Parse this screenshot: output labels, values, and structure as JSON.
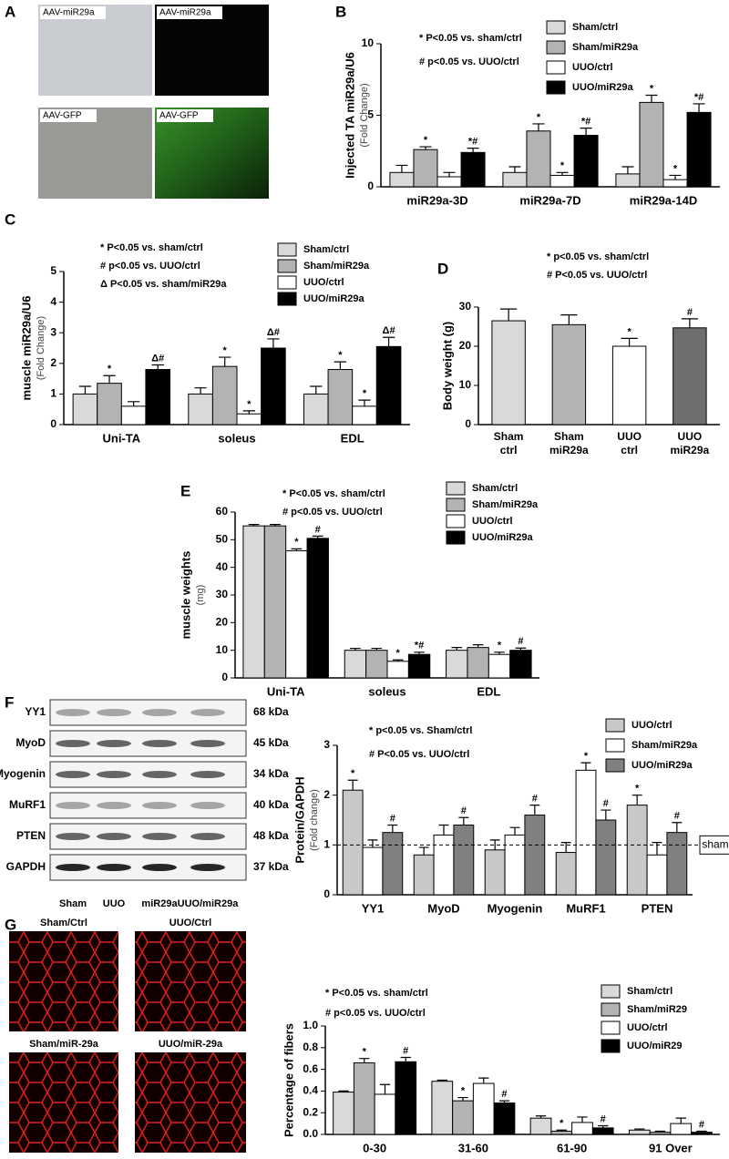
{
  "images_a": {
    "panel": "A",
    "labels": [
      "AAV-miR29a",
      "AAV-miR29a",
      "AAV-GFP",
      "AAV-GFP"
    ]
  },
  "blot_f": {
    "rows": [
      {
        "protein": "YY1",
        "size": "68 kDa"
      },
      {
        "protein": "MyoD",
        "size": "45 kDa"
      },
      {
        "protein": "Myogenin",
        "size": "34 kDa"
      },
      {
        "protein": "MuRF1",
        "size": "40 kDa"
      },
      {
        "protein": "PTEN",
        "size": "48 kDa"
      },
      {
        "protein": "GAPDH",
        "size": "37 kDa"
      }
    ],
    "lanes": [
      "Sham",
      "UUO",
      "miR29a",
      "UUO/miR29a"
    ]
  },
  "images_g": {
    "labels": [
      "Sham/Ctrl",
      "UUO/Ctrl",
      "Sham/miR-29a",
      "UUO/miR-29a"
    ]
  },
  "chart_data": [
    {
      "type": "bar",
      "panel": "B",
      "ylabel": "Injected TA miR29a/U6",
      "ylabel_sub": "(Fold Change)",
      "annotations": [
        "* P<0.05 vs. sham/ctrl",
        "# p<0.05 vs. UUO/ctrl"
      ],
      "categories": [
        "miR29a-3D",
        "miR29a-7D",
        "miR29a-14D"
      ],
      "series": [
        {
          "name": "Sham/ctrl",
          "color": "#d9d9d9",
          "values": [
            1,
            1,
            0.9
          ],
          "errors": [
            0.5,
            0.4,
            0.5
          ],
          "sig": [
            null,
            null,
            null
          ]
        },
        {
          "name": "Sham/miR29a",
          "color": "#b3b3b3",
          "values": [
            2.6,
            3.9,
            5.9
          ],
          "errors": [
            0.2,
            0.5,
            0.5
          ],
          "sig": [
            "*",
            "*",
            "*"
          ]
        },
        {
          "name": "UUO/ctrl",
          "color": "#ffffff",
          "values": [
            0.7,
            0.8,
            0.5
          ],
          "errors": [
            0.3,
            0.2,
            0.3
          ],
          "sig": [
            null,
            "*",
            "*"
          ]
        },
        {
          "name": "UUO/miR29a",
          "color": "#000000",
          "values": [
            2.4,
            3.6,
            5.2
          ],
          "errors": [
            0.3,
            0.5,
            0.6
          ],
          "sig": [
            "*#",
            "*#",
            "*#"
          ]
        }
      ],
      "ylim": [
        0,
        10
      ],
      "yticks": [
        0,
        5,
        10
      ]
    },
    {
      "type": "bar",
      "panel": "C",
      "ylabel": "muscle miR29a/U6",
      "ylabel_sub": "(Fold Change)",
      "annotations": [
        "* P<0.05 vs. sham/ctrl",
        "# p<0.05 vs. UUO/ctrl",
        "Δ P<0.05 vs. sham/miR29a"
      ],
      "categories": [
        "Uni-TA",
        "soleus",
        "EDL"
      ],
      "series": [
        {
          "name": "Sham/ctrl",
          "color": "#d9d9d9",
          "values": [
            1,
            1,
            1
          ],
          "errors": [
            0.25,
            0.2,
            0.25
          ],
          "sig": [
            null,
            null,
            null
          ]
        },
        {
          "name": "Sham/miR29a",
          "color": "#b3b3b3",
          "values": [
            1.35,
            1.9,
            1.8
          ],
          "errors": [
            0.25,
            0.3,
            0.25
          ],
          "sig": [
            "*",
            "*",
            "*"
          ]
        },
        {
          "name": "UUO/ctrl",
          "color": "#ffffff",
          "values": [
            0.6,
            0.35,
            0.6
          ],
          "errors": [
            0.15,
            0.1,
            0.2
          ],
          "sig": [
            null,
            "*",
            "*"
          ]
        },
        {
          "name": "UUO/miR29a",
          "color": "#000000",
          "values": [
            1.8,
            2.5,
            2.55
          ],
          "errors": [
            0.15,
            0.3,
            0.3
          ],
          "sig": [
            "Δ#",
            "Δ#",
            "Δ#"
          ]
        }
      ],
      "ylim": [
        0,
        5
      ],
      "yticks": [
        0,
        1,
        2,
        3,
        4,
        5
      ]
    },
    {
      "type": "bar",
      "panel": "D",
      "ylabel": "Body weight (g)",
      "annotations": [
        "* p<0.05 vs. sham/ctrl",
        "# P<0.05 vs. UUO/ctrl"
      ],
      "categories": [
        [
          "Sham",
          "ctrl"
        ],
        [
          "Sham",
          "miR29a"
        ],
        [
          "UUO",
          "ctrl"
        ],
        [
          "UUO",
          "miR29a"
        ]
      ],
      "values": [
        26.5,
        25.5,
        20,
        24.7
      ],
      "errors": [
        3,
        2.5,
        2,
        2.3
      ],
      "sig": [
        null,
        null,
        "*",
        "#"
      ],
      "colors": [
        "#d9d9d9",
        "#b3b3b3",
        "#ffffff",
        "#6e6e6e"
      ],
      "ylim": [
        0,
        30
      ],
      "yticks": [
        0,
        10,
        20,
        30
      ]
    },
    {
      "type": "bar",
      "panel": "E",
      "ylabel": "muscle weights",
      "ylabel_sub": "(mg)",
      "annotations": [
        "* P<0.05 vs. sham/ctrl",
        "# p<0.05 vs. UUO/ctrl"
      ],
      "categories": [
        "Uni-TA",
        "soleus",
        "EDL"
      ],
      "series": [
        {
          "name": "Sham/ctrl",
          "color": "#d9d9d9",
          "values": [
            55,
            10,
            10
          ],
          "errors": [
            0.5,
            0.7,
            1
          ],
          "sig": [
            null,
            null,
            null
          ]
        },
        {
          "name": "Sham/miR29a",
          "color": "#b3b3b3",
          "values": [
            55,
            10,
            11
          ],
          "errors": [
            0.5,
            0.7,
            1
          ],
          "sig": [
            null,
            null,
            null
          ]
        },
        {
          "name": "UUO/ctrl",
          "color": "#ffffff",
          "values": [
            46,
            6,
            8.5
          ],
          "errors": [
            0.7,
            0.5,
            0.8
          ],
          "sig": [
            "*",
            "*",
            "*"
          ]
        },
        {
          "name": "UUO/miR29a",
          "color": "#000000",
          "values": [
            50.5,
            8.5,
            10
          ],
          "errors": [
            0.8,
            0.8,
            0.8
          ],
          "sig": [
            "#",
            "*#",
            "#"
          ]
        }
      ],
      "ylim": [
        0,
        60
      ],
      "yticks": [
        0,
        10,
        20,
        30,
        40,
        50,
        60
      ]
    },
    {
      "type": "bar",
      "panel": "F",
      "ylabel": "Protein/GAPDH",
      "ylabel_sub": "(Fold change)",
      "annotations": [
        "* p<0.05 vs. Sham/ctrl",
        "# P<0.05 vs. UUO/ctrl"
      ],
      "categories": [
        "YY1",
        "MyoD",
        "Myogenin",
        "MuRF1",
        "PTEN"
      ],
      "series": [
        {
          "name": "UUO/ctrl",
          "color": "#c8c8c8",
          "values": [
            2.1,
            0.8,
            0.9,
            0.85,
            1.8
          ],
          "errors": [
            0.2,
            0.15,
            0.2,
            0.2,
            0.2
          ],
          "sig": [
            "*",
            null,
            null,
            null,
            "*"
          ]
        },
        {
          "name": "Sham/miR29a",
          "color": "#ffffff",
          "values": [
            0.95,
            1.2,
            1.2,
            2.5,
            0.8
          ],
          "errors": [
            0.15,
            0.2,
            0.15,
            0.15,
            0.25
          ],
          "sig": [
            null,
            null,
            null,
            "*",
            null
          ]
        },
        {
          "name": "UUO/miR29a",
          "color": "#808080",
          "values": [
            1.25,
            1.4,
            1.6,
            1.5,
            1.25
          ],
          "errors": [
            0.15,
            0.15,
            0.2,
            0.2,
            0.2
          ],
          "sig": [
            "#",
            "#",
            "#",
            "#",
            "#"
          ]
        }
      ],
      "ref_line": {
        "value": 1,
        "label": "sham"
      },
      "ylim": [
        0,
        3
      ],
      "yticks": [
        0,
        1,
        2,
        3
      ]
    },
    {
      "type": "bar",
      "panel": "G",
      "ylabel": "Percentage of fibers",
      "annotations": [
        "* P<0.05 vs. sham/ctrl",
        "# p<0.05 vs. UUO/ctrl"
      ],
      "categories": [
        "0-30",
        "31-60",
        "61-90",
        "91 Over"
      ],
      "series": [
        {
          "name": "Sham/ctrl",
          "color": "#d9d9d9",
          "values": [
            0.39,
            0.49,
            0.15,
            0.04
          ],
          "errors": [
            0.01,
            0.01,
            0.02,
            0.01
          ],
          "sig": [
            null,
            null,
            null,
            null
          ]
        },
        {
          "name": "Sham/miR29",
          "color": "#b3b3b3",
          "values": [
            0.66,
            0.31,
            0.03,
            0.02
          ],
          "errors": [
            0.04,
            0.03,
            0.01,
            0.01
          ],
          "sig": [
            "*",
            "*",
            "*",
            null
          ]
        },
        {
          "name": "UUO/ctrl",
          "color": "#ffffff",
          "values": [
            0.37,
            0.47,
            0.11,
            0.1
          ],
          "errors": [
            0.09,
            0.05,
            0.05,
            0.05
          ],
          "sig": [
            null,
            null,
            null,
            null
          ]
        },
        {
          "name": "UUO/miR29",
          "color": "#000000",
          "values": [
            0.67,
            0.29,
            0.06,
            0.02
          ],
          "errors": [
            0.04,
            0.02,
            0.02,
            0.01
          ],
          "sig": [
            "#",
            "#",
            "#",
            "#"
          ]
        }
      ],
      "ylim": [
        0,
        1
      ],
      "yticks": [
        {
          "value": 0,
          "label": "0.0"
        },
        0.2,
        0.4,
        0.6,
        0.8,
        {
          "value": 1,
          "label": "1.0"
        }
      ]
    }
  ]
}
